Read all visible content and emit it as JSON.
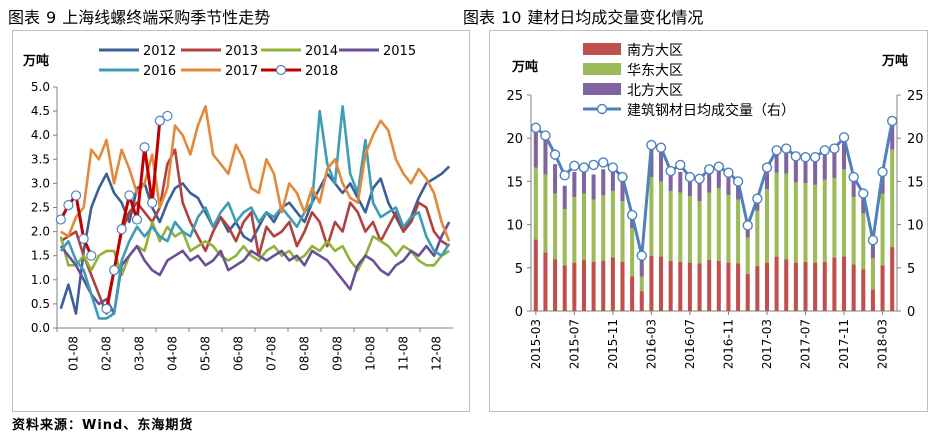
{
  "left_title": {
    "prefix": "图表",
    "num": "9",
    "text": "上海线螺终端采购季节性走势"
  },
  "right_title": {
    "prefix": "图表",
    "num": "10",
    "text": "建材日均成交量变化情况"
  },
  "source": "资料来源：Wind、东海期货",
  "colors": {
    "2012": "#3c5f98",
    "2013": "#b0413e",
    "2014": "#8fb33c",
    "2015": "#6b4f96",
    "2016": "#3c9db5",
    "2017": "#e3893b",
    "2018": "#c00000",
    "south": "#c0504d",
    "east": "#9bbb59",
    "north": "#8064a2",
    "total": "#4f81bd"
  },
  "chart_data": [
    {
      "type": "line",
      "title": "上海线螺终端采购季节性走势",
      "ylabel": "万吨",
      "ylim": [
        0,
        5
      ],
      "yticks": [
        "0.0",
        "0.5",
        "1.0",
        "1.5",
        "2.0",
        "2.5",
        "3.0",
        "3.5",
        "4.0",
        "4.5",
        "5.0"
      ],
      "x_count": 52,
      "xtick_labels": [
        "01-08",
        "02-08",
        "03-08",
        "04-08",
        "05-08",
        "06-08",
        "07-08",
        "08-08",
        "09-08",
        "10-08",
        "11-08",
        "12-08"
      ],
      "series": [
        {
          "name": "2012",
          "values": [
            0.4,
            0.9,
            0.3,
            1.6,
            2.5,
            2.9,
            3.2,
            2.8,
            2.6,
            2.2,
            2.9,
            3.0,
            2.5,
            2.2,
            2.6,
            2.9,
            3.0,
            2.8,
            2.7,
            2.4,
            2.1,
            2.3,
            2.0,
            2.2,
            1.9,
            1.8,
            2.1,
            2.4,
            2.2,
            2.5,
            2.6,
            2.4,
            2.2,
            2.6,
            2.9,
            3.2,
            3.0,
            2.8,
            3.0,
            2.7,
            2.4,
            2.9,
            3.1,
            2.6,
            2.3,
            2.0,
            2.3,
            2.7,
            3.0,
            3.1,
            3.2,
            3.35
          ]
        },
        {
          "name": "2013",
          "values": [
            1.8,
            1.9,
            2.0,
            1.5,
            1.1,
            0.7,
            0.3,
            1.2,
            2.0,
            2.4,
            2.6,
            2.4,
            2.2,
            2.5,
            3.4,
            3.7,
            2.6,
            2.2,
            1.9,
            1.6,
            2.0,
            2.3,
            2.1,
            1.8,
            2.2,
            2.4,
            1.5,
            2.1,
            1.9,
            2.0,
            2.2,
            1.7,
            2.0,
            2.4,
            2.2,
            1.7,
            2.2,
            2.0,
            2.6,
            2.4,
            2.0,
            2.2,
            1.8,
            2.1,
            2.4,
            2.0,
            2.2,
            2.6,
            2.5,
            2.0,
            1.8,
            1.7
          ]
        },
        {
          "name": "2014",
          "values": [
            1.9,
            1.3,
            1.3,
            1.5,
            1.2,
            1.5,
            1.6,
            1.6,
            1.1,
            1.5,
            1.7,
            1.6,
            2.2,
            1.8,
            2.1,
            1.9,
            2.0,
            1.6,
            1.7,
            1.8,
            1.7,
            1.5,
            1.4,
            1.5,
            1.7,
            1.5,
            1.4,
            1.6,
            1.7,
            1.5,
            1.6,
            1.4,
            1.5,
            1.7,
            1.6,
            1.8,
            1.6,
            1.7,
            1.4,
            1.2,
            1.5,
            1.9,
            1.8,
            1.7,
            1.5,
            1.7,
            1.6,
            1.4,
            1.3,
            1.3,
            1.5,
            1.6
          ]
        },
        {
          "name": "2015",
          "values": [
            1.7,
            1.5,
            1.3,
            1.0,
            0.7,
            0.5,
            0.6,
            0.3,
            1.3,
            1.5,
            1.7,
            1.4,
            1.2,
            1.1,
            1.4,
            1.5,
            1.6,
            1.4,
            1.5,
            1.3,
            1.4,
            1.6,
            1.2,
            1.3,
            1.4,
            1.6,
            1.5,
            1.4,
            1.5,
            1.6,
            1.4,
            1.5,
            1.3,
            1.6,
            1.5,
            1.4,
            1.2,
            1.0,
            0.8,
            1.3,
            1.5,
            1.4,
            1.2,
            1.1,
            1.3,
            1.4,
            1.6,
            1.5,
            1.7,
            1.5,
            1.9,
            2.2
          ]
        },
        {
          "name": "2016",
          "values": [
            1.6,
            1.8,
            1.4,
            1.2,
            0.7,
            0.2,
            0.2,
            0.3,
            1.4,
            1.8,
            2.1,
            1.9,
            2.1,
            1.9,
            1.8,
            2.2,
            2.0,
            1.9,
            2.3,
            2.5,
            2.1,
            2.4,
            2.6,
            2.2,
            2.4,
            2.5,
            2.2,
            2.4,
            2.3,
            2.5,
            2.3,
            2.1,
            2.4,
            2.6,
            4.5,
            3.4,
            3.0,
            4.6,
            3.2,
            2.8,
            3.9,
            2.6,
            2.3,
            2.4,
            2.5,
            2.1,
            2.3,
            2.4,
            1.9,
            1.6,
            1.5,
            1.75
          ]
        },
        {
          "name": "2017",
          "values": [
            2.0,
            1.9,
            2.3,
            2.5,
            3.7,
            3.5,
            3.9,
            3.0,
            3.7,
            3.3,
            2.8,
            3.0,
            3.6,
            2.5,
            2.9,
            4.2,
            4.0,
            3.6,
            4.2,
            4.6,
            3.6,
            3.4,
            3.2,
            3.8,
            3.5,
            2.9,
            2.8,
            3.5,
            3.2,
            2.4,
            3.0,
            2.8,
            2.4,
            2.9,
            2.6,
            3.3,
            3.5,
            3.0,
            2.7,
            2.6,
            3.6,
            4.0,
            4.3,
            4.1,
            3.5,
            3.2,
            3.0,
            3.3,
            3.1,
            2.8,
            2.2,
            1.8
          ]
        },
        {
          "name": "2018",
          "values": [
            2.25,
            2.55,
            2.75,
            1.85,
            1.5,
            null,
            0.4,
            1.2,
            2.05,
            2.75,
            2.25,
            3.75,
            2.6,
            4.3,
            4.4
          ],
          "markers": true
        }
      ]
    },
    {
      "type": "bar",
      "stacked": true,
      "title": "建材日均成交量变化情况",
      "ylabel_left": "万吨",
      "ylabel_right": "万吨",
      "ylim": [
        0,
        25
      ],
      "yticks": [
        "0",
        "5",
        "10",
        "15",
        "20",
        "25"
      ],
      "categories": [
        "2015-03",
        "2015-04",
        "2015-05",
        "2015-06",
        "2015-07",
        "2015-08",
        "2015-09",
        "2015-10",
        "2015-11",
        "2015-12",
        "2016-01",
        "2016-02",
        "2016-03",
        "2016-04",
        "2016-05",
        "2016-06",
        "2016-07",
        "2016-08",
        "2016-09",
        "2016-10",
        "2016-11",
        "2016-12",
        "2017-01",
        "2017-02",
        "2017-03",
        "2017-04",
        "2017-05",
        "2017-06",
        "2017-07",
        "2017-08",
        "2017-09",
        "2017-10",
        "2017-11",
        "2017-12",
        "2018-01",
        "2018-02",
        "2018-03",
        "2018-04"
      ],
      "xtick_labels": [
        "2015-03",
        "2015-07",
        "2015-11",
        "2016-03",
        "2016-07",
        "2016-11",
        "2017-03",
        "2017-07",
        "2017-11",
        "2018-03"
      ],
      "series": [
        {
          "name": "南方大区",
          "values": [
            8.3,
            6.8,
            6.0,
            5.3,
            5.6,
            5.9,
            5.7,
            5.8,
            6.2,
            5.7,
            4.0,
            2.3,
            6.4,
            6.3,
            5.8,
            5.7,
            5.6,
            5.5,
            5.9,
            5.8,
            5.6,
            5.5,
            4.3,
            5.2,
            5.6,
            6.3,
            6.0,
            5.6,
            5.7,
            5.6,
            5.7,
            6.2,
            6.3,
            5.4,
            4.8,
            2.5,
            5.3,
            7.4
          ]
        },
        {
          "name": "华东大区",
          "values": [
            8.3,
            9.0,
            7.6,
            6.5,
            7.6,
            7.7,
            7.2,
            7.6,
            7.7,
            7.0,
            5.6,
            1.7,
            9.1,
            8.7,
            8.1,
            8.0,
            7.7,
            7.2,
            7.8,
            8.4,
            7.8,
            7.4,
            4.2,
            6.4,
            8.5,
            9.7,
            9.9,
            9.3,
            9.1,
            9.0,
            9.5,
            9.2,
            10.1,
            7.8,
            6.5,
            3.6,
            8.3,
            11.3
          ]
        },
        {
          "name": "北方大区",
          "values": [
            4.1,
            4.0,
            3.4,
            2.7,
            2.9,
            3.0,
            2.9,
            3.0,
            2.6,
            2.4,
            1.3,
            2.5,
            3.4,
            3.4,
            2.7,
            2.4,
            2.7,
            2.6,
            2.5,
            2.8,
            3.0,
            2.5,
            1.6,
            1.2,
            2.3,
            2.6,
            2.8,
            3.1,
            2.9,
            2.9,
            3.2,
            3.3,
            3.3,
            2.0,
            2.0,
            2.1,
            2.2,
            3.3
          ]
        },
        {
          "name": "建筑钢材日均成交量（右）",
          "values": [
            21.2,
            20.3,
            18.1,
            15.7,
            16.8,
            16.6,
            16.9,
            17.2,
            16.6,
            15.5,
            11.1,
            6.4,
            19.2,
            18.9,
            16.2,
            16.9,
            15.5,
            15.3,
            16.4,
            16.7,
            16.0,
            15.0,
            9.9,
            13.0,
            16.6,
            18.6,
            18.8,
            17.9,
            17.8,
            17.8,
            18.6,
            18.8,
            20.1,
            15.5,
            13.6,
            8.2,
            16.1,
            22.0
          ],
          "axis": "right"
        }
      ]
    }
  ]
}
